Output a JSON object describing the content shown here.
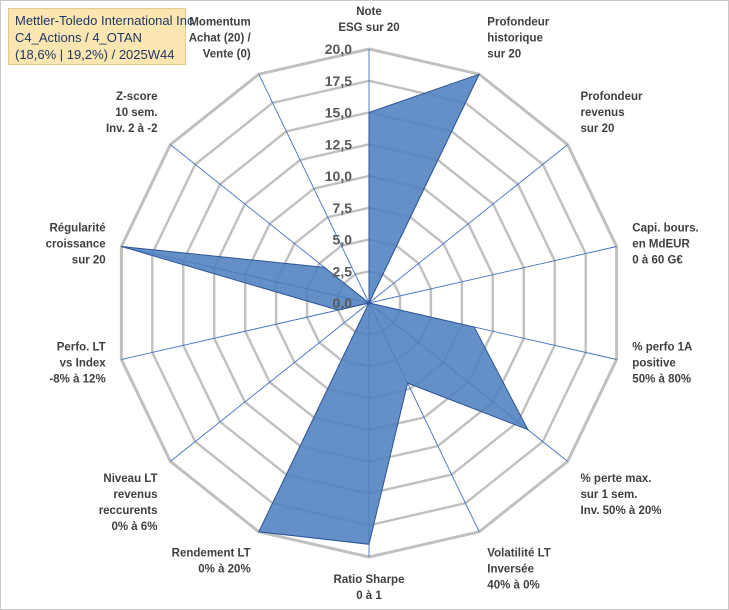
{
  "title": {
    "line1": "Mettler-Toledo International Inc",
    "line2": "C4_Actions / 4_OTAN",
    "line3": "(18,6% | 19,2%) / 2025W44"
  },
  "colors": {
    "fill": "#4f7fbf",
    "stroke": "#2f5597",
    "grid": "#c0c0c0",
    "spoke": "#4472c4",
    "title_bg": "#fbe6b2"
  },
  "chart_data": {
    "type": "radar",
    "rmax": 20,
    "ticks": [
      "0,0",
      "2,5",
      "5,0",
      "7,5",
      "10,0",
      "12,5",
      "15,0",
      "17,5",
      "20,0"
    ],
    "tick_values": [
      0,
      2.5,
      5,
      7.5,
      10,
      12.5,
      15,
      17.5,
      20
    ],
    "axes": [
      {
        "label": [
          "Note",
          "ESG sur 20"
        ],
        "value": 15.0
      },
      {
        "label": [
          "Profondeur",
          "historique",
          "sur 20"
        ],
        "value": 20.0
      },
      {
        "label": [
          "Profondeur",
          "revenus",
          "sur 20"
        ],
        "value": 0.0
      },
      {
        "label": [
          "Capi. bours.",
          "en MdEUR",
          "0 à 60 G€"
        ],
        "value": 0.0
      },
      {
        "label": [
          "% perfo 1A",
          "positive",
          "50% à 80%"
        ],
        "value": 8.5
      },
      {
        "label": [
          "% perte max.",
          "sur 1 sem.",
          "Inv. 50% à 20%"
        ],
        "value": 16.0
      },
      {
        "label": [
          "Volatilité LT",
          "Inversée",
          "40% à 0%"
        ],
        "value": 7.0
      },
      {
        "label": [
          "Ratio Sharpe",
          "0 à 1"
        ],
        "value": 19.0
      },
      {
        "label": [
          "Rendement LT",
          "0% à 20%"
        ],
        "value": 20.0
      },
      {
        "label": [
          "Niveau LT",
          "revenus",
          "reccurents",
          "0% à 6%"
        ],
        "value": 0.0
      },
      {
        "label": [
          "Perfo. LT",
          "vs Index",
          "-8% à 12%"
        ],
        "value": 2.5
      },
      {
        "label": [
          "Régularité",
          "croissance",
          "sur 20"
        ],
        "value": 20.0
      },
      {
        "label": [
          "Z-score",
          "10 sem.",
          "Inv. 2 à -2"
        ],
        "value": 4.5
      },
      {
        "label": [
          "Momentum",
          "Achat (20) /",
          "Vente (0)"
        ],
        "value": 0.0
      }
    ]
  }
}
